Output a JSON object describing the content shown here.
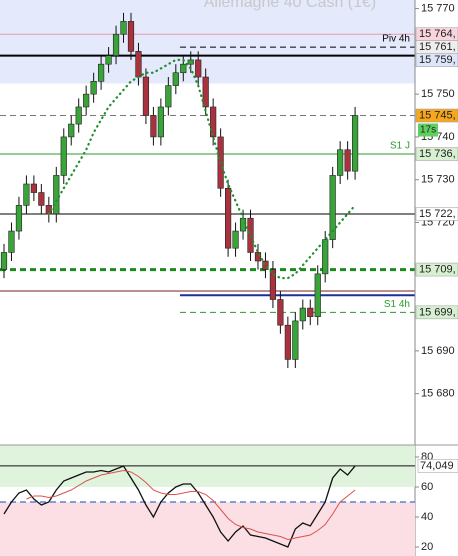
{
  "chart_data": [
    {
      "type": "candlestick",
      "title": "Allemagne 40 Cash (1€)",
      "open": [
        15709,
        15713,
        15718,
        15724,
        15729,
        15727,
        15724,
        15722,
        15731,
        15740,
        15743,
        15747,
        15750,
        15753,
        15757,
        15759,
        15764,
        15767,
        15760,
        15754,
        15745,
        15740,
        15747,
        15752,
        15755,
        15757,
        15758,
        15754,
        15747,
        15740,
        15728,
        15714,
        15718,
        15721,
        15713,
        15711,
        15709,
        15702,
        15696,
        15688,
        15697,
        15700,
        15698,
        15708,
        15716,
        15731,
        15737,
        15732
      ],
      "high": [
        15715,
        15720,
        15726,
        15731,
        15731,
        15729,
        15726,
        15733,
        15742,
        15745,
        15749,
        15752,
        15755,
        15759,
        15761,
        15766,
        15769,
        15769,
        15762,
        15756,
        15747,
        15749,
        15754,
        15757,
        15759,
        15760,
        15760,
        15756,
        15749,
        15742,
        15730,
        15720,
        15723,
        15723,
        15715,
        15713,
        15711,
        15704,
        15698,
        15699,
        15702,
        15702,
        15710,
        15718,
        15733,
        15739,
        15739,
        15747
      ],
      "low": [
        15707,
        15711,
        15716,
        15722,
        15725,
        15722,
        15720,
        15720,
        15729,
        15738,
        15741,
        15745,
        15748,
        15751,
        15755,
        15757,
        15762,
        15758,
        15752,
        15743,
        15738,
        15738,
        15745,
        15750,
        15753,
        15755,
        15752,
        15745,
        15738,
        15726,
        15712,
        15712,
        15716,
        15711,
        15709,
        15707,
        15700,
        15694,
        15686,
        15686,
        15695,
        15696,
        15696,
        15706,
        15714,
        15729,
        15730,
        15730
      ],
      "close": [
        15713,
        15718,
        15724,
        15729,
        15727,
        15724,
        15722,
        15731,
        15740,
        15743,
        15747,
        15750,
        15753,
        15757,
        15759,
        15764,
        15767,
        15760,
        15754,
        15745,
        15740,
        15747,
        15752,
        15755,
        15757,
        15758,
        15754,
        15747,
        15740,
        15728,
        15714,
        15718,
        15721,
        15713,
        15711,
        15709,
        15702,
        15696,
        15688,
        15697,
        15700,
        15698,
        15708,
        15716,
        15731,
        15737,
        15732,
        15745
      ],
      "up_color": "#3aa43a",
      "down_color": "#a8323e",
      "ma": {
        "color": "#1f8f2a",
        "values": [
          null,
          null,
          null,
          null,
          null,
          null,
          15722,
          15725,
          15728,
          15731,
          15734,
          15737,
          15741,
          15744,
          15747,
          15749,
          15751,
          15753,
          15754,
          15755,
          15755,
          15756,
          15757,
          15758,
          15758,
          15756,
          15752,
          15746,
          15740,
          15734,
          15729,
          15725,
          15721,
          15717,
          15713,
          15710,
          15708,
          15707,
          15707,
          15708,
          15710,
          15712,
          15714,
          15716,
          15718,
          15720,
          15722,
          15724
        ]
      },
      "ylim": [
        15668,
        15772
      ],
      "yticks": [
        {
          "value": 15770,
          "label": "15 770"
        },
        {
          "value": 15750,
          "label": "15 750"
        },
        {
          "value": 15740,
          "label": "15 740"
        },
        {
          "value": 15730,
          "label": "15 730"
        },
        {
          "value": 15720,
          "label": "15 720"
        },
        {
          "value": 15690,
          "label": "15 690"
        },
        {
          "value": 15680,
          "label": "15 680"
        }
      ],
      "shaded_zone": {
        "from": 15752.5,
        "to": 15772,
        "color": "#e4e9fb"
      },
      "levels": [
        {
          "value": 15764,
          "label": "15 764,",
          "color": "#e49aab",
          "style": "solid",
          "width": 1,
          "label_bg": "#f8d5dd"
        },
        {
          "value": 15761,
          "label": "15 761,",
          "name": "Piv 4h",
          "color": "#000000",
          "style": "dash",
          "width": 1,
          "label_bg": "#eeeeee",
          "partial": true
        },
        {
          "value": 15759,
          "label": "15 759,",
          "color": "#000000",
          "style": "solid",
          "width": 2,
          "label_bg": "#dde6f8"
        },
        {
          "value": 15745,
          "label": "15 745,",
          "color": "#777777",
          "style": "dash",
          "width": 1,
          "label_bg": "#f5a71d"
        },
        {
          "value": 15736,
          "label": "15 736,",
          "name": "S1 J",
          "color": "#2e9a2e",
          "style": "solid",
          "width": 1,
          "label_bg": "#d8f0d2"
        },
        {
          "value": 15722,
          "label": "15 722,",
          "color": "#000000",
          "style": "solid",
          "width": 1,
          "label_bg": "#ffffff"
        },
        {
          "value": 15709,
          "label": "15 709,",
          "color": "#1a8a1a",
          "style": "dash",
          "width": 3,
          "label_bg": "#d8f0d2"
        },
        {
          "value": 15704,
          "color": "#7a1f1f",
          "style": "solid",
          "width": 1
        },
        {
          "value": 15703,
          "color": "#1d2f9e",
          "style": "solid",
          "width": 2,
          "partial": true
        },
        {
          "value": 15699,
          "label": "15 699,",
          "name": "S1 4h",
          "color": "#2e9a2e",
          "style": "dash",
          "width": 1,
          "label_bg": "#d8f0d2",
          "partial": true
        }
      ],
      "countdown": "17s"
    },
    {
      "type": "line",
      "series": [
        {
          "color": "#111111",
          "values": [
            42,
            50,
            56,
            58,
            52,
            48,
            50,
            58,
            64,
            66,
            68,
            70,
            70,
            71,
            70,
            72,
            74,
            66,
            58,
            48,
            40,
            50,
            56,
            60,
            62,
            62,
            56,
            48,
            40,
            30,
            24,
            30,
            34,
            28,
            27,
            26,
            24,
            22,
            20,
            32,
            36,
            34,
            42,
            50,
            66,
            72,
            68,
            74.049
          ],
          "value_labels": [
            null,
            null,
            null,
            null,
            null,
            null,
            null,
            null,
            null,
            null,
            null,
            null,
            null,
            null,
            null,
            null,
            null,
            null,
            null,
            null,
            null,
            null,
            null,
            null,
            null,
            null,
            null,
            null,
            null,
            null,
            null,
            null,
            null,
            null,
            null,
            null,
            null,
            null,
            null,
            null,
            null,
            null,
            null,
            null,
            null,
            null,
            null,
            "74,049"
          ]
        },
        {
          "color": "#d9534f",
          "values": [
            null,
            null,
            null,
            52,
            54,
            54,
            53,
            54,
            56,
            58,
            61,
            64,
            66,
            68,
            69,
            70,
            71,
            70,
            67,
            63,
            58,
            56,
            55,
            55,
            56,
            57,
            57,
            55,
            51,
            45,
            39,
            35,
            33,
            32,
            30,
            29,
            28,
            27,
            25,
            26,
            27,
            28,
            31,
            35,
            42,
            50,
            54,
            58
          ]
        }
      ],
      "ylim": [
        14,
        88
      ],
      "yticks": [
        80,
        60,
        40,
        20
      ],
      "zones": [
        {
          "from": 60,
          "to": 88,
          "color": "#e0f3dc"
        },
        {
          "from": 14,
          "to": 50,
          "color": "#fbdfe4"
        }
      ],
      "levels": [
        {
          "value": 50,
          "color": "#3a6fd0",
          "style": "dash"
        }
      ]
    }
  ]
}
